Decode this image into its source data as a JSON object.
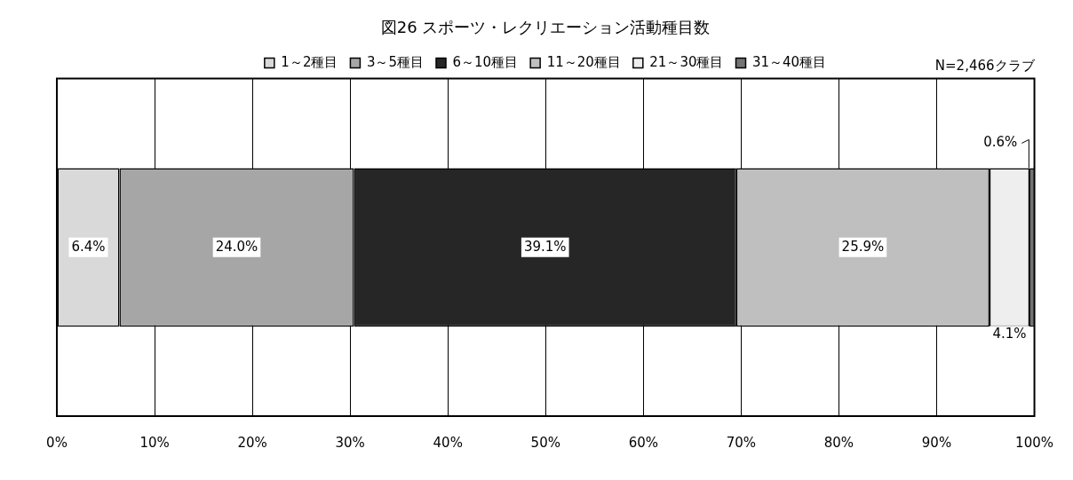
{
  "chart_data": {
    "type": "bar",
    "orientation": "horizontal",
    "stacked": true,
    "title": "図26 スポーツ・レクリエーション活動種目数",
    "categories": [
      null
    ],
    "series": [
      {
        "name": "1～2種目",
        "color": "#d9d9d9",
        "values": [
          6.4
        ],
        "value_labels": [
          "6.4%"
        ]
      },
      {
        "name": "3～5種目",
        "color": "#a6a6a6",
        "values": [
          24.0
        ],
        "value_labels": [
          "24.0%"
        ]
      },
      {
        "name": "6～10種目",
        "color": "#262626",
        "values": [
          39.1
        ],
        "value_labels": [
          "39.1%"
        ]
      },
      {
        "name": "11～20種目",
        "color": "#bfbfbf",
        "values": [
          25.9
        ],
        "value_labels": [
          "25.9%"
        ]
      },
      {
        "name": "21～30種目",
        "color": "#eeeeee",
        "values": [
          4.1
        ],
        "value_labels": [
          "4.1%"
        ]
      },
      {
        "name": "31～40種目",
        "color": "#737373",
        "values": [
          0.6
        ],
        "value_labels": [
          "0.6%"
        ]
      }
    ],
    "xlim": [
      0,
      100
    ],
    "xticks": [
      {
        "value": 0,
        "label": "0%"
      },
      {
        "value": 10,
        "label": "10%"
      },
      {
        "value": 20,
        "label": "20%"
      },
      {
        "value": 30,
        "label": "30%"
      },
      {
        "value": 40,
        "label": "40%"
      },
      {
        "value": 50,
        "label": "50%"
      },
      {
        "value": 60,
        "label": "60%"
      },
      {
        "value": 70,
        "label": "70%"
      },
      {
        "value": 80,
        "label": "80%"
      },
      {
        "value": 90,
        "label": "90%"
      },
      {
        "value": 100,
        "label": "100%"
      }
    ],
    "grid": "x",
    "legend": "top",
    "annotations": [
      "N=2,466クラブ"
    ]
  }
}
